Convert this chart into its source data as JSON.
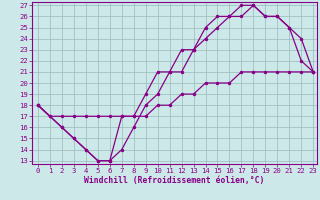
{
  "xlabel": "Windchill (Refroidissement éolien,°C)",
  "bg_color": "#cce8e8",
  "line_color": "#880088",
  "grid_color": "#99bbbb",
  "xlim": [
    -0.5,
    23.3
  ],
  "ylim": [
    12.7,
    27.3
  ],
  "xticks": [
    0,
    1,
    2,
    3,
    4,
    5,
    6,
    7,
    8,
    9,
    10,
    11,
    12,
    13,
    14,
    15,
    16,
    17,
    18,
    19,
    20,
    21,
    22,
    23
  ],
  "yticks": [
    13,
    14,
    15,
    16,
    17,
    18,
    19,
    20,
    21,
    22,
    23,
    24,
    25,
    26,
    27
  ],
  "line1_x": [
    0,
    1,
    2,
    3,
    4,
    5,
    6,
    7,
    8,
    9,
    10,
    11,
    12,
    13,
    14,
    15,
    16,
    17,
    18,
    19,
    20,
    21,
    22,
    23
  ],
  "line1_y": [
    18,
    17,
    16,
    15,
    14,
    13,
    13,
    17,
    17,
    19,
    21,
    21,
    23,
    23,
    25,
    26,
    26,
    27,
    27,
    26,
    26,
    25,
    24,
    21
  ],
  "line2_x": [
    0,
    2,
    3,
    4,
    5,
    6,
    7,
    8,
    9,
    10,
    11,
    12,
    13,
    14,
    15,
    16,
    17,
    18,
    19,
    20,
    21,
    22,
    23
  ],
  "line2_y": [
    18,
    16,
    15,
    14,
    13,
    13,
    14,
    16,
    18,
    19,
    21,
    21,
    23,
    24,
    25,
    26,
    26,
    27,
    26,
    26,
    25,
    22,
    21
  ],
  "line3_x": [
    0,
    1,
    2,
    3,
    4,
    5,
    6,
    7,
    8,
    9,
    10,
    11,
    12,
    13,
    14,
    15,
    16,
    17,
    18,
    19,
    20,
    21,
    22,
    23
  ],
  "line3_y": [
    18,
    17,
    17,
    17,
    17,
    17,
    17,
    17,
    17,
    17,
    18,
    18,
    19,
    19,
    20,
    20,
    20,
    21,
    21,
    21,
    21,
    21,
    21,
    21
  ],
  "font_family": "monospace",
  "tick_fontsize": 5.2,
  "xlabel_fontsize": 5.8
}
